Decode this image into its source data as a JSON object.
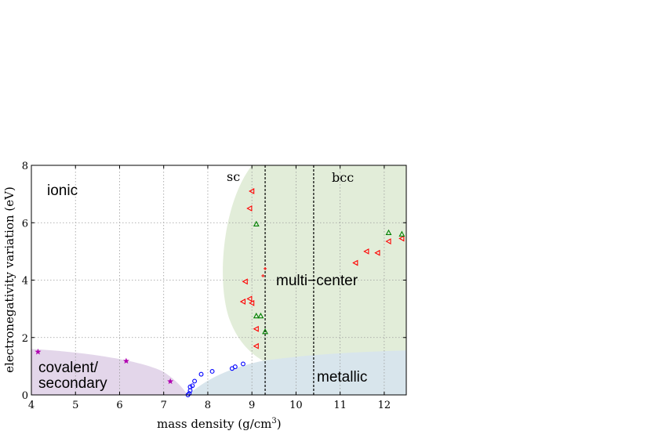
{
  "chart_data": {
    "type": "scatter",
    "title": "",
    "xlabel_text": "mass density (g/cm",
    "xlabel_sup": "3",
    "xlabel_close": ")",
    "ylabel": "electronegativity variation (eV)",
    "xlim": [
      4,
      12.5
    ],
    "ylim": [
      0,
      8
    ],
    "xticks": [
      4,
      5,
      6,
      7,
      8,
      9,
      10,
      11,
      12
    ],
    "yticks": [
      0,
      2,
      4,
      6,
      8
    ],
    "grid": true,
    "region_labels": {
      "ionic": "ionic",
      "covalent_line1": "covalent/",
      "covalent_line2": "secondary",
      "multicenter": "multi−center",
      "metallic": "metallic"
    },
    "lattice_labels": {
      "sc": "sc",
      "bcc": "bcc"
    },
    "vertical_lines": [
      9.3,
      10.4
    ],
    "colors": {
      "covalent_region": "#e3d6ea",
      "multicenter_region": "#e2edd9",
      "metallic_region": "#d8e5ec",
      "stars": "#b000b0",
      "circles": "#0000ff",
      "left_triangles": "#ff0000",
      "up_triangles": "#008000"
    },
    "series": [
      {
        "marker": "star",
        "points": [
          [
            4.15,
            1.5
          ],
          [
            6.15,
            1.18
          ],
          [
            7.15,
            0.47
          ]
        ]
      },
      {
        "marker": "circle",
        "points": [
          [
            7.55,
            0.0
          ],
          [
            7.58,
            0.05
          ],
          [
            7.6,
            0.15
          ],
          [
            7.6,
            0.28
          ],
          [
            7.65,
            0.32
          ],
          [
            7.7,
            0.48
          ],
          [
            7.85,
            0.72
          ],
          [
            8.1,
            0.82
          ],
          [
            8.55,
            0.92
          ],
          [
            8.62,
            0.98
          ],
          [
            8.8,
            1.08
          ]
        ]
      },
      {
        "marker": "left_triangle",
        "points": [
          [
            9.0,
            7.1
          ],
          [
            8.95,
            6.5
          ],
          [
            8.85,
            3.95
          ],
          [
            8.8,
            3.25
          ],
          [
            8.95,
            3.35
          ],
          [
            9.0,
            3.2
          ],
          [
            9.1,
            2.3
          ],
          [
            9.1,
            1.7
          ],
          [
            11.35,
            4.6
          ],
          [
            11.6,
            5.0
          ],
          [
            11.85,
            4.95
          ],
          [
            12.1,
            5.35
          ],
          [
            12.4,
            5.45
          ]
        ]
      },
      {
        "marker": "up_triangle",
        "points": [
          [
            9.1,
            5.95
          ],
          [
            9.1,
            2.75
          ],
          [
            9.2,
            2.75
          ],
          [
            9.3,
            2.2
          ],
          [
            12.1,
            5.65
          ],
          [
            12.4,
            5.6
          ]
        ]
      },
      {
        "marker": "plus",
        "points": [
          [
            9.3,
            4.4
          ],
          [
            9.25,
            4.15
          ]
        ]
      }
    ]
  }
}
